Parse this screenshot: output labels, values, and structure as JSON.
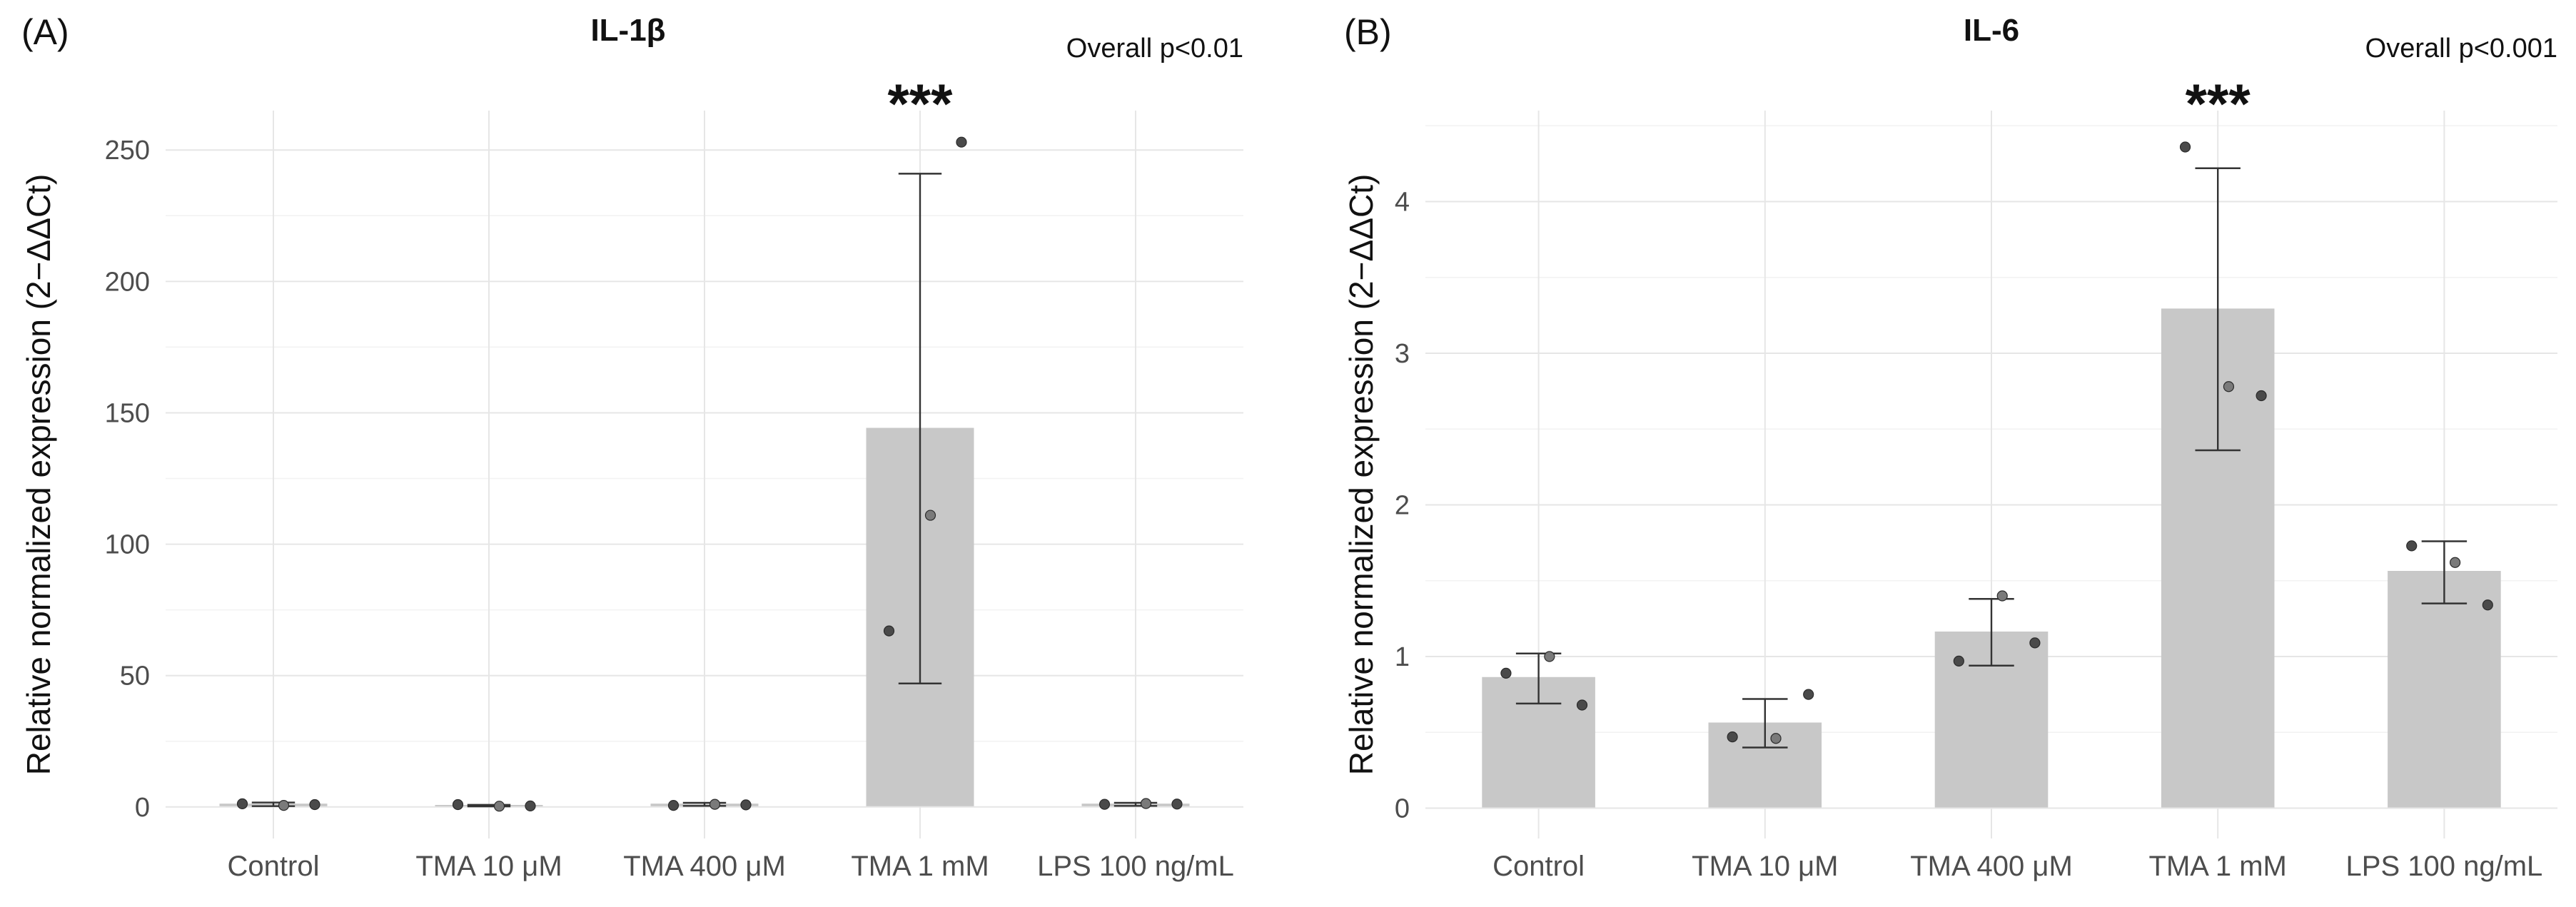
{
  "chart_data": [
    {
      "type": "bar",
      "panel_label": "(A)",
      "title": "IL-1β",
      "subtitle": "Overall p<0.01",
      "xlabel": "",
      "ylabel": "Relative normalized expression (2−ΔΔCt)",
      "ylim": [
        -12,
        265
      ],
      "yticks": [
        0,
        50,
        100,
        150,
        200,
        250
      ],
      "categories": [
        "Control",
        "TMA 10 μM",
        "TMA 400 μM",
        "TMA 1 mM",
        "LPS 100 ng/mL"
      ],
      "values": [
        1,
        0.5,
        1,
        144,
        1
      ],
      "error_low": [
        0.3,
        0.2,
        0.4,
        47,
        0.4
      ],
      "error_high": [
        1.7,
        0.8,
        1.6,
        241,
        1.6
      ],
      "points": [
        [
          1.2,
          0.6,
          0.9
        ],
        [
          0.9,
          0.3,
          0.4
        ],
        [
          0.6,
          1.0,
          0.8
        ],
        [
          67,
          111,
          253
        ],
        [
          1.0,
          1.3,
          1.1
        ]
      ],
      "annotations": [
        {
          "category": "TMA 1 mM",
          "text": "***"
        }
      ],
      "grid": true
    },
    {
      "type": "bar",
      "panel_label": "(B)",
      "title": "IL-6",
      "subtitle": "Overall p<0.001",
      "xlabel": "",
      "ylabel": "Relative normalized expression (2−ΔΔCt)",
      "ylim": [
        -0.2,
        4.6
      ],
      "yticks": [
        0,
        1,
        2,
        3,
        4
      ],
      "categories": [
        "Control",
        "TMA 10 μM",
        "TMA 400 μM",
        "TMA 1 mM",
        "LPS 100 ng/mL"
      ],
      "values": [
        0.86,
        0.56,
        1.16,
        3.29,
        1.56
      ],
      "error_low": [
        0.69,
        0.4,
        0.94,
        2.36,
        1.35
      ],
      "error_high": [
        1.02,
        0.72,
        1.38,
        4.22,
        1.76
      ],
      "points": [
        [
          0.89,
          1.0,
          0.68
        ],
        [
          0.47,
          0.46,
          0.75
        ],
        [
          0.97,
          1.4,
          1.09
        ],
        [
          4.36,
          2.78,
          2.72
        ],
        [
          1.73,
          1.62,
          1.34
        ]
      ],
      "annotations": [
        {
          "category": "TMA 1 mM",
          "text": "***"
        }
      ],
      "grid": true
    }
  ]
}
